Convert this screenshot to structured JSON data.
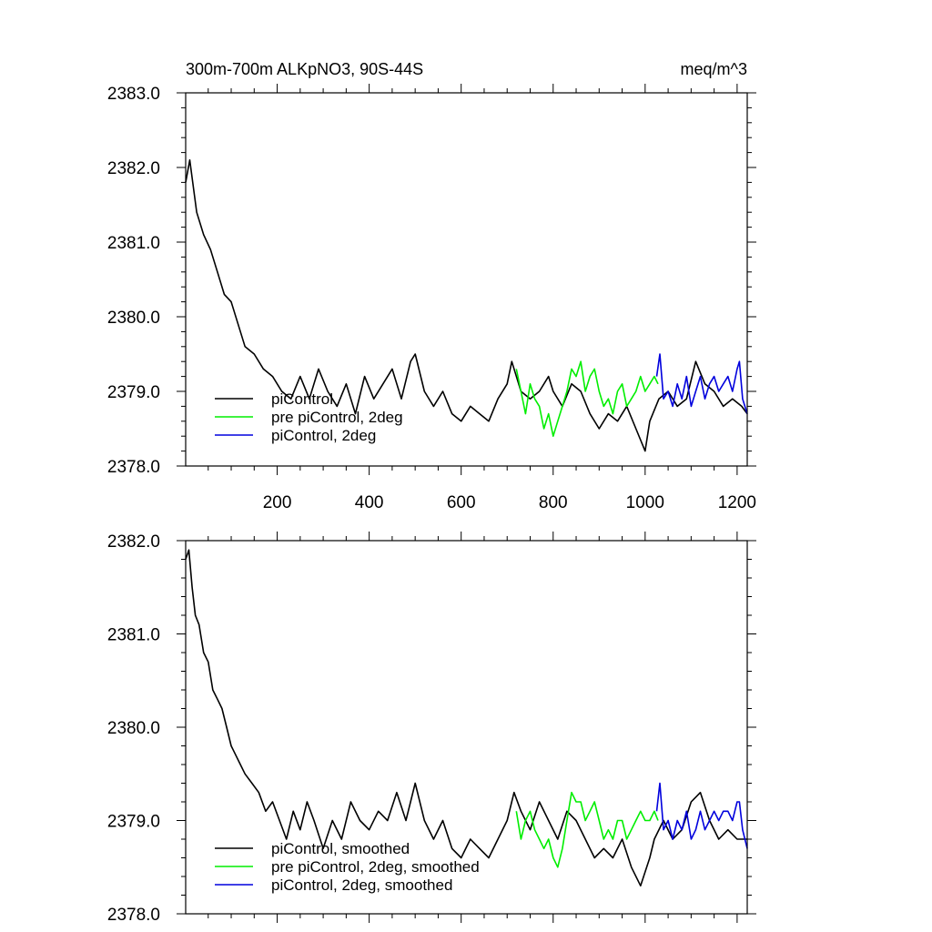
{
  "colors": {
    "piControl": "#000000",
    "prePiControl2deg": "#00ee00",
    "piControl2deg": "#0000dd"
  },
  "chart_data": [
    {
      "type": "line",
      "title": "300m-700m ALKpNO3, 90S-44S",
      "units": "meq/m^3",
      "xlim": [
        1,
        1222
      ],
      "ylim": [
        2378.0,
        2383.0
      ],
      "xticks": [
        200,
        400,
        600,
        800,
        1000,
        1200
      ],
      "xtick_labels": [
        "200",
        "400",
        "600",
        "800",
        "1000",
        "1200"
      ],
      "yticks": [
        2378.0,
        2379.0,
        2380.0,
        2381.0,
        2382.0,
        2383.0
      ],
      "ytick_labels": [
        "2378.0",
        "2379.0",
        "2380.0",
        "2381.0",
        "2382.0",
        "2383.0"
      ],
      "legend_position": "bottom-left",
      "series": [
        {
          "name": "piControl",
          "color": "#000000",
          "x": [
            1,
            10,
            25,
            40,
            55,
            70,
            85,
            100,
            115,
            130,
            150,
            170,
            190,
            210,
            230,
            250,
            270,
            290,
            310,
            330,
            350,
            370,
            390,
            410,
            430,
            450,
            470,
            490,
            500,
            520,
            540,
            560,
            580,
            600,
            620,
            640,
            660,
            680,
            700,
            710,
            730,
            750,
            770,
            790,
            800,
            820,
            840,
            860,
            880,
            900,
            920,
            940,
            960,
            980,
            1000,
            1010,
            1030,
            1050,
            1070,
            1090,
            1110,
            1130,
            1150,
            1170,
            1190,
            1210,
            1222
          ],
          "values": [
            2381.8,
            2382.1,
            2381.4,
            2381.1,
            2380.9,
            2380.6,
            2380.3,
            2380.2,
            2379.9,
            2379.6,
            2379.5,
            2379.3,
            2379.2,
            2379.0,
            2378.9,
            2379.2,
            2378.9,
            2379.3,
            2379.0,
            2378.8,
            2379.1,
            2378.7,
            2379.2,
            2378.9,
            2379.1,
            2379.3,
            2378.9,
            2379.4,
            2379.5,
            2379.0,
            2378.8,
            2379.0,
            2378.7,
            2378.6,
            2378.8,
            2378.7,
            2378.6,
            2378.9,
            2379.1,
            2379.4,
            2379.0,
            2378.9,
            2379.0,
            2379.2,
            2379.0,
            2378.8,
            2379.1,
            2379.0,
            2378.7,
            2378.5,
            2378.7,
            2378.6,
            2378.8,
            2378.5,
            2378.2,
            2378.6,
            2378.9,
            2379.0,
            2378.8,
            2378.9,
            2379.4,
            2379.1,
            2379.0,
            2378.8,
            2378.9,
            2378.8,
            2378.7
          ]
        },
        {
          "name": "pre piControl, 2deg",
          "color": "#00ee00",
          "x": [
            720,
            730,
            740,
            750,
            760,
            770,
            780,
            790,
            800,
            810,
            820,
            830,
            840,
            850,
            860,
            870,
            880,
            890,
            900,
            910,
            920,
            930,
            940,
            950,
            960,
            970,
            980,
            990,
            1000,
            1010,
            1020,
            1028
          ],
          "values": [
            2379.3,
            2379.0,
            2378.7,
            2379.1,
            2378.9,
            2378.8,
            2378.5,
            2378.7,
            2378.4,
            2378.6,
            2378.8,
            2379.0,
            2379.3,
            2379.2,
            2379.4,
            2379.0,
            2379.2,
            2379.3,
            2379.0,
            2378.8,
            2378.9,
            2378.7,
            2379.0,
            2379.1,
            2378.8,
            2378.9,
            2379.0,
            2379.2,
            2379.0,
            2379.1,
            2379.2,
            2379.1
          ]
        },
        {
          "name": "piControl, 2deg",
          "color": "#0000dd",
          "x": [
            1025,
            1032,
            1040,
            1050,
            1060,
            1070,
            1080,
            1090,
            1100,
            1110,
            1120,
            1130,
            1140,
            1150,
            1160,
            1170,
            1180,
            1190,
            1200,
            1205,
            1212,
            1222
          ],
          "values": [
            2379.2,
            2379.5,
            2378.9,
            2379.0,
            2378.8,
            2379.1,
            2378.9,
            2379.2,
            2378.8,
            2379.0,
            2379.2,
            2378.9,
            2379.1,
            2379.2,
            2379.0,
            2379.1,
            2379.2,
            2379.0,
            2379.3,
            2379.4,
            2378.9,
            2378.7
          ]
        }
      ]
    },
    {
      "type": "line",
      "xlim": [
        1,
        1222
      ],
      "ylim": [
        2378.0,
        2382.0
      ],
      "yticks": [
        2378.0,
        2379.0,
        2380.0,
        2381.0,
        2382.0
      ],
      "ytick_labels": [
        "2378.0",
        "2379.0",
        "2380.0",
        "2381.0",
        "2382.0"
      ],
      "legend_position": "bottom-left",
      "series": [
        {
          "name": "piControl, smoothed",
          "color": "#000000",
          "x": [
            1,
            8,
            15,
            22,
            30,
            40,
            50,
            60,
            70,
            80,
            90,
            100,
            110,
            120,
            130,
            145,
            160,
            175,
            190,
            205,
            220,
            235,
            250,
            265,
            280,
            300,
            320,
            340,
            360,
            380,
            400,
            420,
            440,
            460,
            480,
            500,
            520,
            540,
            560,
            580,
            600,
            620,
            640,
            660,
            680,
            700,
            715,
            730,
            750,
            770,
            790,
            810,
            830,
            850,
            870,
            890,
            910,
            930,
            950,
            970,
            990,
            1010,
            1020,
            1040,
            1060,
            1080,
            1100,
            1120,
            1140,
            1160,
            1180,
            1200,
            1222
          ],
          "values": [
            2381.8,
            2381.9,
            2381.5,
            2381.2,
            2381.1,
            2380.8,
            2380.7,
            2380.4,
            2380.3,
            2380.2,
            2380.0,
            2379.8,
            2379.7,
            2379.6,
            2379.5,
            2379.4,
            2379.3,
            2379.1,
            2379.2,
            2379.0,
            2378.8,
            2379.1,
            2378.9,
            2379.2,
            2379.0,
            2378.7,
            2379.0,
            2378.8,
            2379.2,
            2379.0,
            2378.9,
            2379.1,
            2379.0,
            2379.3,
            2379.0,
            2379.4,
            2379.0,
            2378.8,
            2379.0,
            2378.7,
            2378.6,
            2378.8,
            2378.7,
            2378.6,
            2378.8,
            2379.0,
            2379.3,
            2379.1,
            2378.9,
            2379.2,
            2379.0,
            2378.8,
            2379.1,
            2379.0,
            2378.8,
            2378.6,
            2378.7,
            2378.6,
            2378.8,
            2378.5,
            2378.3,
            2378.6,
            2378.8,
            2379.0,
            2378.8,
            2378.9,
            2379.2,
            2379.3,
            2379.0,
            2378.8,
            2378.9,
            2378.8,
            2378.8
          ]
        },
        {
          "name": "pre piControl, 2deg, smoothed",
          "color": "#00ee00",
          "x": [
            720,
            730,
            740,
            750,
            760,
            770,
            780,
            790,
            800,
            810,
            820,
            830,
            840,
            850,
            860,
            870,
            880,
            890,
            900,
            910,
            920,
            930,
            940,
            950,
            960,
            970,
            980,
            990,
            1000,
            1010,
            1020,
            1028
          ],
          "values": [
            2379.1,
            2378.8,
            2379.0,
            2379.1,
            2378.9,
            2378.8,
            2378.7,
            2378.8,
            2378.6,
            2378.5,
            2378.7,
            2379.0,
            2379.3,
            2379.2,
            2379.2,
            2379.0,
            2379.1,
            2379.2,
            2379.0,
            2378.8,
            2378.9,
            2378.8,
            2379.0,
            2379.0,
            2378.8,
            2378.9,
            2379.0,
            2379.1,
            2379.0,
            2379.0,
            2379.1,
            2379.0
          ]
        },
        {
          "name": "piControl, 2deg, smoothed",
          "color": "#0000dd",
          "x": [
            1025,
            1032,
            1040,
            1050,
            1060,
            1070,
            1080,
            1090,
            1100,
            1110,
            1120,
            1130,
            1140,
            1150,
            1160,
            1170,
            1180,
            1190,
            1200,
            1205,
            1212,
            1222
          ],
          "values": [
            2379.1,
            2379.4,
            2378.9,
            2379.0,
            2378.8,
            2379.0,
            2378.9,
            2379.1,
            2378.8,
            2378.9,
            2379.1,
            2378.9,
            2379.0,
            2379.1,
            2379.0,
            2379.1,
            2379.1,
            2379.0,
            2379.2,
            2379.2,
            2378.9,
            2378.7
          ]
        }
      ]
    }
  ]
}
